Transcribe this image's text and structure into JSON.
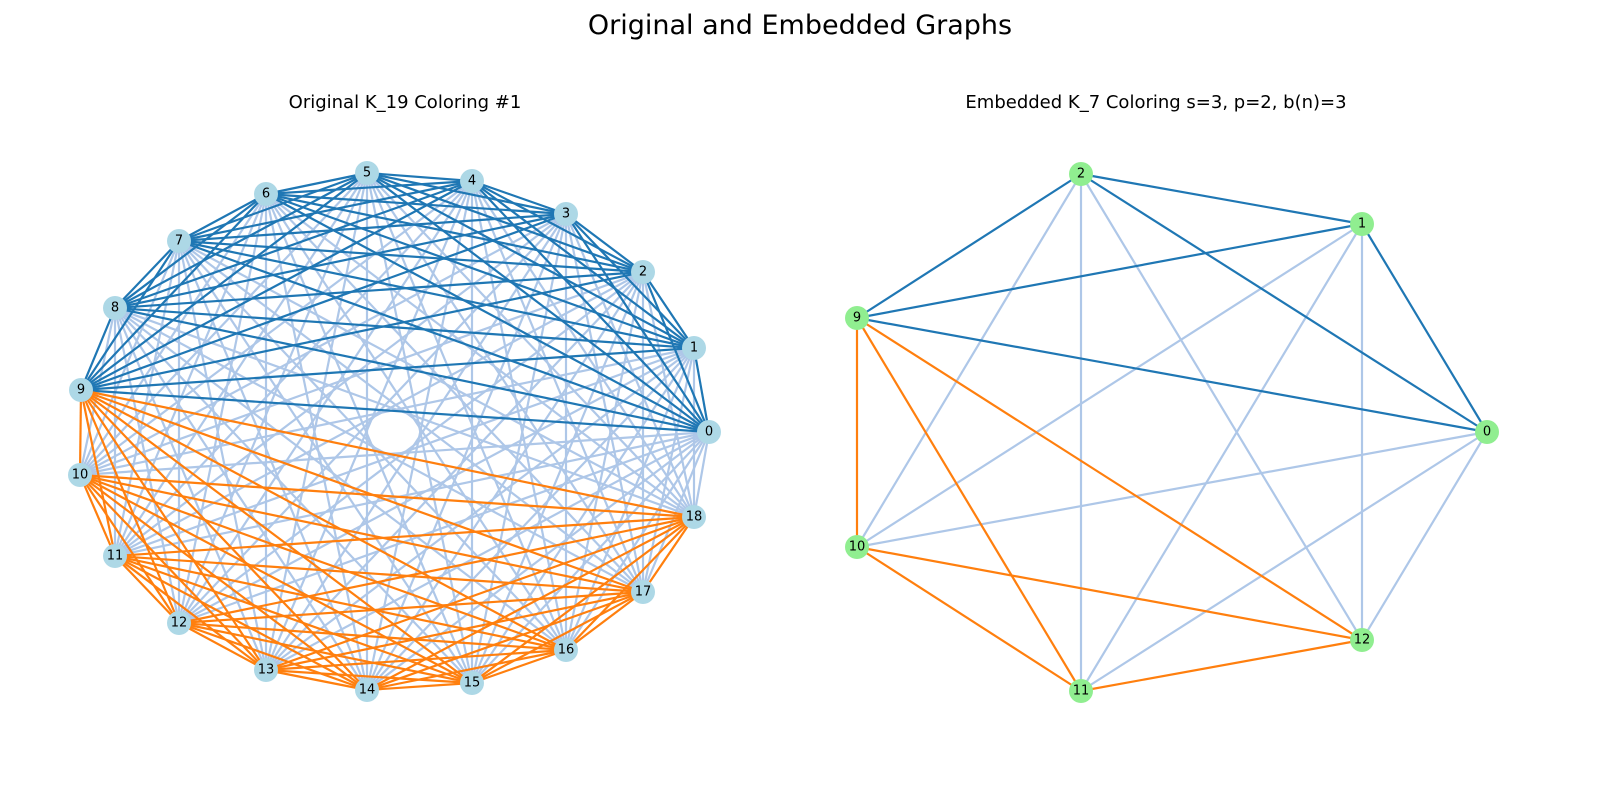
{
  "title": "Original and Embedded Graphs",
  "colors": {
    "node_original": "#add8e6",
    "node_embedded": "#90ee90",
    "edge_class_1": "#1f77b4",
    "edge_class_2": "#ff7f0e",
    "edge_class_3": "#aec7e8"
  },
  "panels": [
    {
      "title": "Original K_19 Coloring #1",
      "graph": "K_19",
      "nodes": [
        "0",
        "1",
        "2",
        "3",
        "4",
        "5",
        "6",
        "7",
        "8",
        "9",
        "10",
        "11",
        "12",
        "13",
        "14",
        "15",
        "16",
        "17",
        "18"
      ],
      "edge_coloring_rule": {
        "group_1": [
          "0",
          "1",
          "2",
          "3",
          "4",
          "5",
          "6",
          "7",
          "8",
          "9"
        ],
        "group_2": [
          "9",
          "10",
          "11",
          "12",
          "13",
          "14",
          "15",
          "16",
          "17",
          "18"
        ],
        "group_1_color": "#1f77b4",
        "group_2_color": "#ff7f0e",
        "other_color": "#aec7e8"
      }
    },
    {
      "title": "Embedded K_7 Coloring s=3, p=2, b(n)=3",
      "graph": "K_7",
      "nodes": [
        "0",
        "1",
        "2",
        "9",
        "10",
        "11",
        "12"
      ],
      "edge_coloring_rule": {
        "group_1": [
          "0",
          "1",
          "2",
          "9"
        ],
        "group_2": [
          "9",
          "10",
          "11",
          "12"
        ],
        "group_1_color": "#1f77b4",
        "group_2_color": "#ff7f0e",
        "other_color": "#aec7e8"
      }
    }
  ]
}
